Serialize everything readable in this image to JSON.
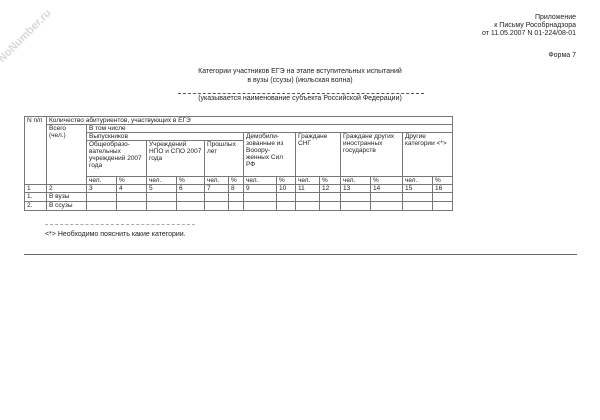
{
  "watermark": "NoNumber.ru",
  "header": {
    "line1": "Приложение",
    "line2": "к Письму Рособрнадзора",
    "line3": "от 11.05.2007 N 01-224/08-01",
    "form": "Форма 7"
  },
  "title": {
    "line1": "Категории участников ЕГЭ на этапе вступительных испытаний",
    "line2": "в вузы (ссузы) (июльская волна)",
    "subtitle": "(указывается наименование субъекта Российской Федерации)"
  },
  "table": {
    "col_n": "N п/п",
    "col_total": "Всего (чел.)",
    "group_main": "Количество абитуриентов, участвующих в ЕГЭ",
    "group_including": "В том числе",
    "group_graduates": "Выпускников",
    "cat_general": "Общеобразо-вательных учреждений 2007 года",
    "cat_npo": "Учреждений НПО и СПО 2007 года",
    "cat_past": "Прошлых лет",
    "cat_demob": "Демобили-зованные из Вооору-женных Сил РФ",
    "cat_cis": "Граждане СНГ",
    "cat_foreign": "Граждане других иностранных государств",
    "cat_other": "Другие категории <*>",
    "unit_people": "чел.",
    "unit_pct": "%",
    "numbers": [
      "1",
      "2",
      "3",
      "4",
      "5",
      "6",
      "7",
      "8",
      "9",
      "10",
      "11",
      "12",
      "13",
      "14",
      "15",
      "16"
    ],
    "rows": [
      {
        "n": "1.",
        "label": "В вузы"
      },
      {
        "n": "2.",
        "label": "В ссузы"
      }
    ]
  },
  "footnote": "<*> Необходимо пояснить какие категории."
}
